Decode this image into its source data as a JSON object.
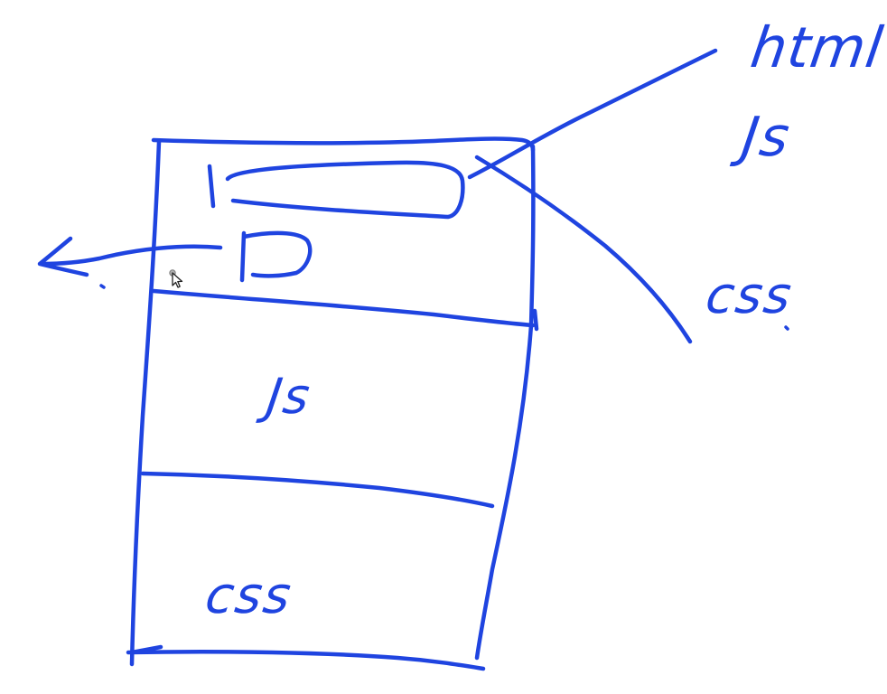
{
  "diagram": {
    "ink_color": "#1f44e0",
    "background": "#ffffff",
    "labels": {
      "top_right_first": "html",
      "top_right_second": "Js",
      "right_middle": "css",
      "page_middle_section": "Js",
      "page_bottom_section": "css"
    }
  }
}
